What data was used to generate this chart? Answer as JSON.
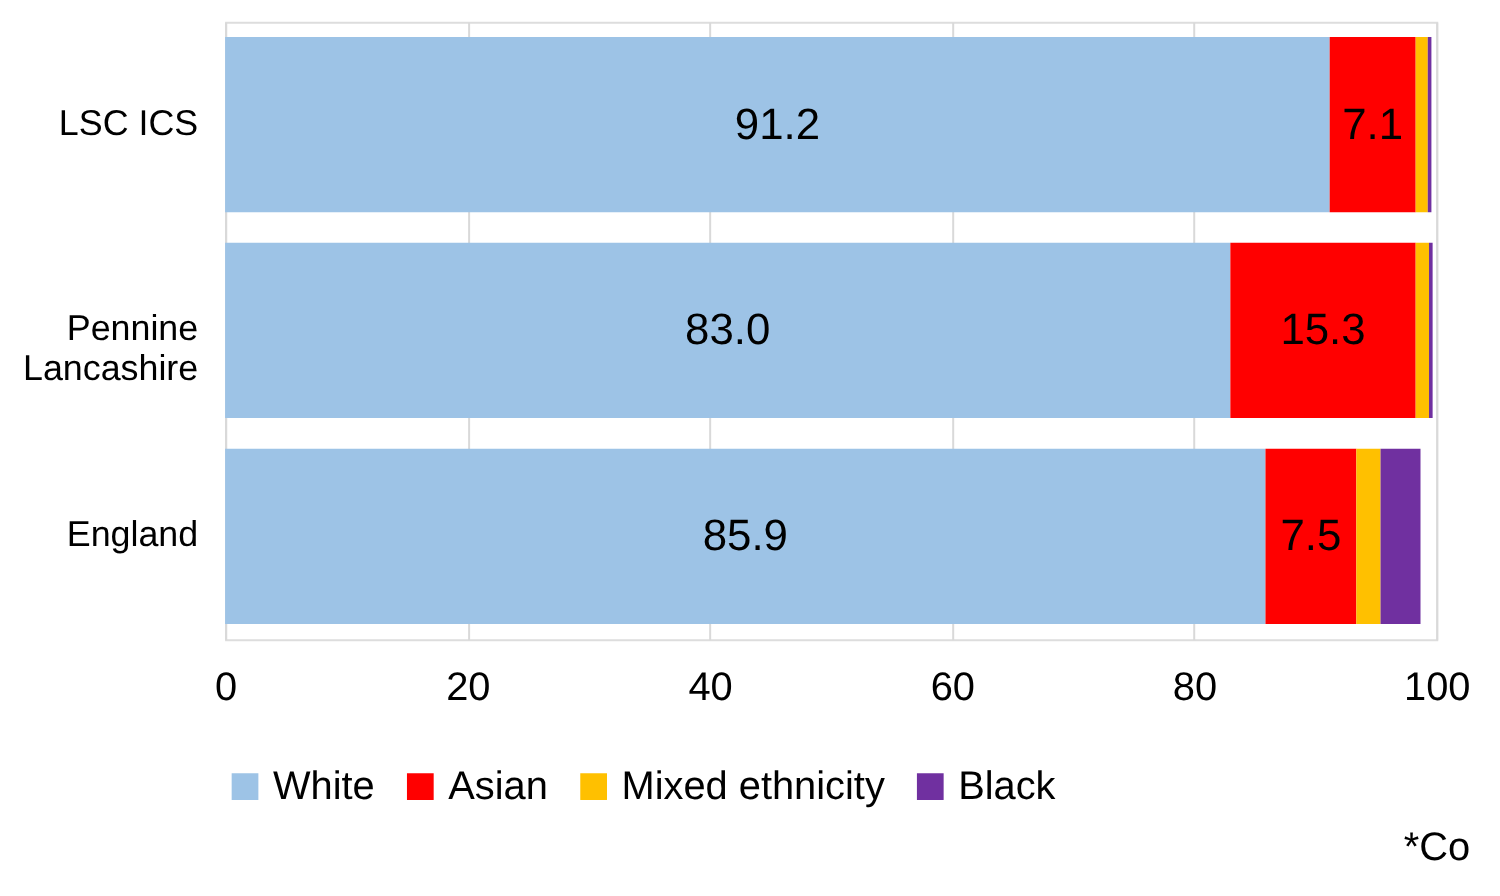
{
  "chart_data": {
    "type": "bar",
    "orientation": "horizontal",
    "stacked": true,
    "categories": [
      "LSC ICS",
      "Pennine\nLancashire",
      "England"
    ],
    "series": [
      {
        "name": "White",
        "color": "#9dc3e6",
        "values": [
          91.2,
          83.0,
          85.9
        ],
        "value_labels": [
          "91.2",
          "83.0",
          "85.9"
        ]
      },
      {
        "name": "Asian",
        "color": "#ff0000",
        "values": [
          7.1,
          15.3,
          7.5
        ],
        "value_labels": [
          "7.1",
          "15.3",
          "7.5"
        ]
      },
      {
        "name": "Mixed ethnicity",
        "color": "#ffc000",
        "values": [
          1.0,
          1.1,
          2.0
        ]
      },
      {
        "name": "Black",
        "color": "#7030a0",
        "values": [
          0.3,
          0.3,
          3.3
        ]
      }
    ],
    "xlim": [
      0,
      100
    ],
    "xticks": [
      0,
      20,
      40,
      60,
      80,
      100
    ],
    "grid": "x",
    "legend": "bottom",
    "annotations": [
      "*Co"
    ]
  }
}
